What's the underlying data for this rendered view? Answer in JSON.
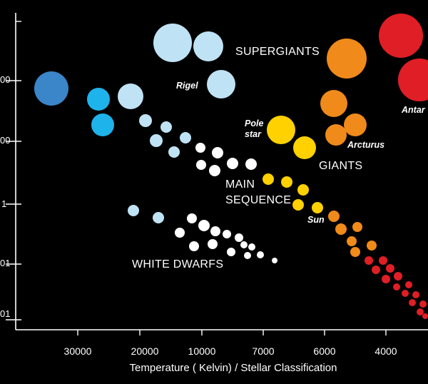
{
  "chart_data": {
    "type": "scatter",
    "title": "",
    "xlabel": "Temperature ( Kelvin) / Stellar Classification",
    "ylabel": "",
    "x_ticks": [
      "30000",
      "20000",
      "10000",
      "7000",
      "6000",
      "4000"
    ],
    "y_ticks": [
      "00",
      "00",
      "1",
      "01",
      "01"
    ],
    "regions": [
      {
        "name": "SUPERGIANTS"
      },
      {
        "name": "GIANTS"
      },
      {
        "name": "MAIN SEQUENCE",
        "lines": [
          "MAIN",
          "SEQUENCE"
        ]
      },
      {
        "name": "WHITE DWARFS"
      }
    ],
    "labeled_stars": [
      {
        "name": "Rigel"
      },
      {
        "name": "Pole star",
        "lines": [
          "Pole",
          "star"
        ]
      },
      {
        "name": "Arcturus"
      },
      {
        "name": "Sun"
      },
      {
        "name": "Antar"
      }
    ],
    "colors": {
      "background": "#000000",
      "axis": "#ffffff",
      "blue_dark": "#3a86c8",
      "blue_bright": "#1fb3ec",
      "blue_pale": "#bfe3f5",
      "white": "#ffffff",
      "yellow": "#ffd100",
      "orange": "#f08a1a",
      "red": "#e01e25"
    }
  }
}
